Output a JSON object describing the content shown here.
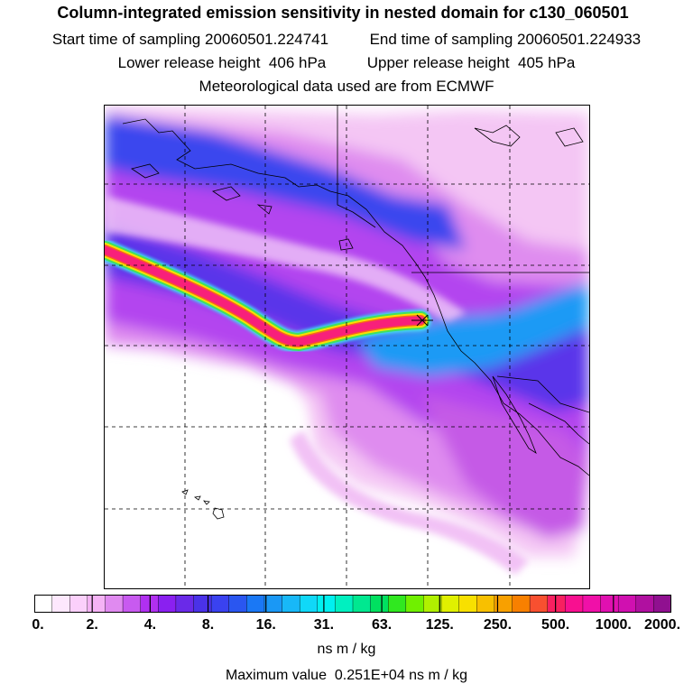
{
  "header": {
    "title": "Column-integrated emission sensitivity in nested domain for c130_060501",
    "start_label": "Start time of sampling",
    "start_value": "20060501.224741",
    "end_label": "End time of sampling",
    "end_value": "20060501.224933",
    "lower_label": "Lower release height",
    "lower_value": "406 hPa",
    "upper_label": "Upper release height",
    "upper_value": "405 hPa",
    "met_line": "Meteorological data used are from ECMWF"
  },
  "colorbar": {
    "labels": [
      "0.",
      "2.",
      "4.",
      "8.",
      "16.",
      "31.",
      "63.",
      "125.",
      "250.",
      "500.",
      "1000.",
      "2000."
    ],
    "colors": [
      "#ffffff",
      "#fde8fd",
      "#fbd0fb",
      "#f5b3f5",
      "#e08af0",
      "#c85af0",
      "#b030f0",
      "#8a20f0",
      "#6a2ae8",
      "#4a32e8",
      "#3a42f0",
      "#2a56f0",
      "#1a78f5",
      "#1a98f5",
      "#18b8f8",
      "#10d8f8",
      "#00f0f0",
      "#00f0c0",
      "#00e890",
      "#00e060",
      "#30e820",
      "#70f000",
      "#b0f000",
      "#e0f000",
      "#f8e000",
      "#f8c000",
      "#f8a000",
      "#f88000",
      "#f85030",
      "#f82060",
      "#f81090",
      "#f010a8",
      "#e010b0",
      "#d010b0",
      "#b010a0",
      "#901090"
    ],
    "units": "ns m / kg"
  },
  "footer": {
    "max_label": "Maximum value",
    "max_value": "0.251E+04 ns m / kg"
  }
}
